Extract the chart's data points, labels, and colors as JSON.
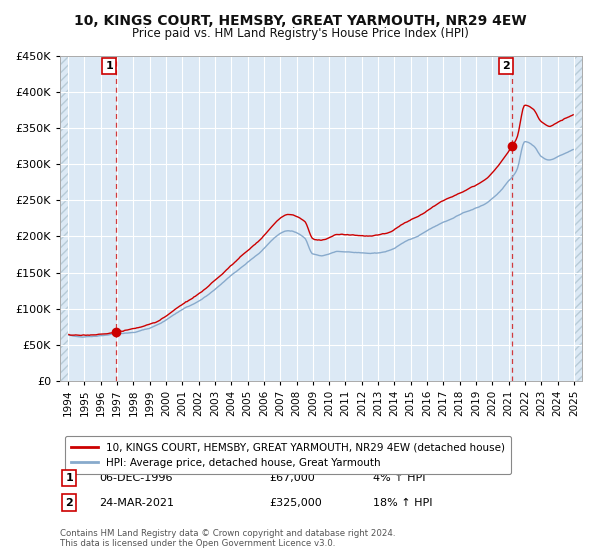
{
  "title": "10, KINGS COURT, HEMSBY, GREAT YARMOUTH, NR29 4EW",
  "subtitle": "Price paid vs. HM Land Registry's House Price Index (HPI)",
  "background_color": "#ffffff",
  "plot_bg_color": "#dce9f5",
  "grid_color": "#ffffff",
  "red_line_color": "#cc0000",
  "blue_line_color": "#88aacc",
  "sale1_date": 1996.92,
  "sale1_price": 67000,
  "sale2_date": 2021.23,
  "sale2_price": 325000,
  "ylim_min": 0,
  "ylim_max": 450000,
  "xlim_min": 1993.5,
  "xlim_max": 2025.5,
  "yticks": [
    0,
    50000,
    100000,
    150000,
    200000,
    250000,
    300000,
    350000,
    400000,
    450000
  ],
  "ytick_labels": [
    "£0",
    "£50K",
    "£100K",
    "£150K",
    "£200K",
    "£250K",
    "£300K",
    "£350K",
    "£400K",
    "£450K"
  ],
  "xticks": [
    1994,
    1995,
    1996,
    1997,
    1998,
    1999,
    2000,
    2001,
    2002,
    2003,
    2004,
    2005,
    2006,
    2007,
    2008,
    2009,
    2010,
    2011,
    2012,
    2013,
    2014,
    2015,
    2016,
    2017,
    2018,
    2019,
    2020,
    2021,
    2022,
    2023,
    2024,
    2025
  ],
  "legend_red_label": "10, KINGS COURT, HEMSBY, GREAT YARMOUTH, NR29 4EW (detached house)",
  "legend_blue_label": "HPI: Average price, detached house, Great Yarmouth",
  "row1_num": "1",
  "row1_date": "06-DEC-1996",
  "row1_price": "£67,000",
  "row1_hpi": "4% ↑ HPI",
  "row2_num": "2",
  "row2_date": "24-MAR-2021",
  "row2_price": "£325,000",
  "row2_hpi": "18% ↑ HPI",
  "footer": "Contains HM Land Registry data © Crown copyright and database right 2024.\nThis data is licensed under the Open Government Licence v3.0."
}
